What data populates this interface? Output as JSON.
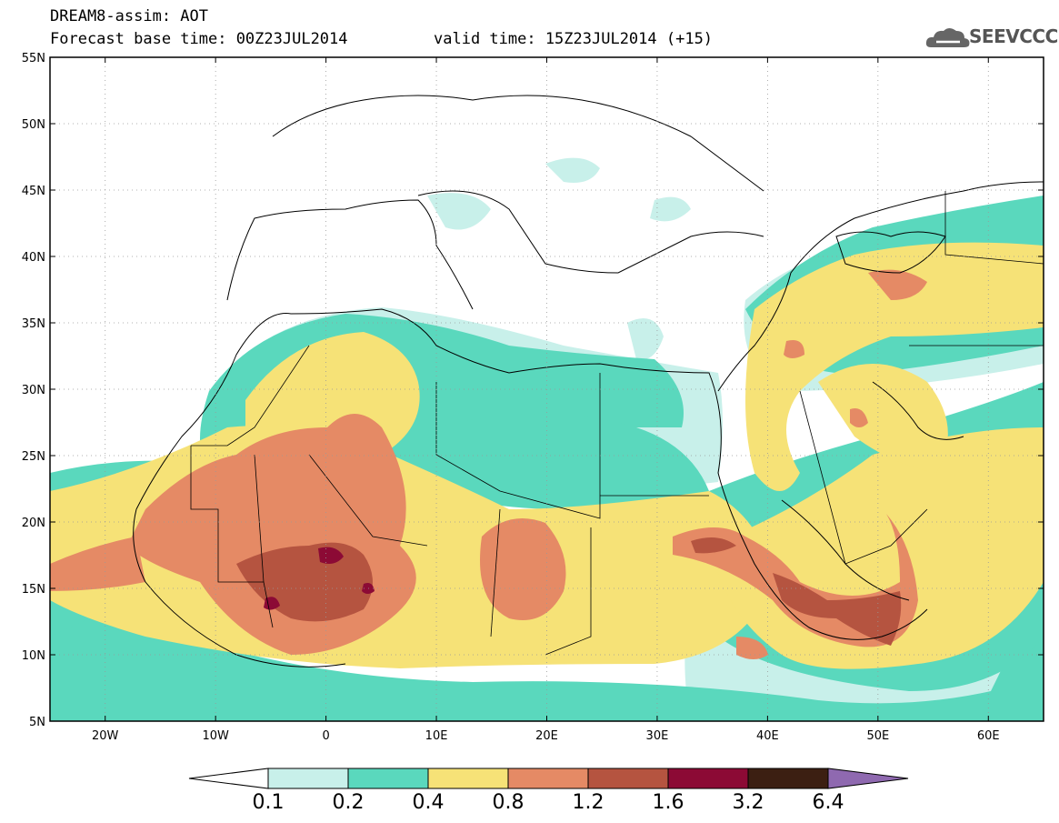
{
  "header": {
    "line1": "DREAM8-assim: AOT",
    "line2": "Forecast base time: 00Z23JUL2014",
    "valid": "valid time: 15Z23JUL2014 (+15)"
  },
  "logo": {
    "text": "SEEVCCC",
    "icon": "cloud-icon"
  },
  "map": {
    "lat_range": [
      5,
      55
    ],
    "lon_range": [
      -25,
      65
    ],
    "lat_ticks": [
      "55N",
      "50N",
      "45N",
      "40N",
      "35N",
      "30N",
      "25N",
      "20N",
      "15N",
      "10N",
      "5N"
    ],
    "lon_ticks": [
      "20W",
      "10W",
      "0",
      "10E",
      "20E",
      "30E",
      "40E",
      "50E",
      "60E"
    ]
  },
  "colorbar": {
    "labels": [
      "0.1",
      "0.2",
      "0.4",
      "0.8",
      "1.2",
      "1.6",
      "3.2",
      "6.4"
    ],
    "colors": [
      "#c8f0ea",
      "#5ad8bd",
      "#f6e277",
      "#e58a65",
      "#b55440",
      "#8c0a35",
      "#3c1f12",
      "#8f69b0"
    ]
  }
}
